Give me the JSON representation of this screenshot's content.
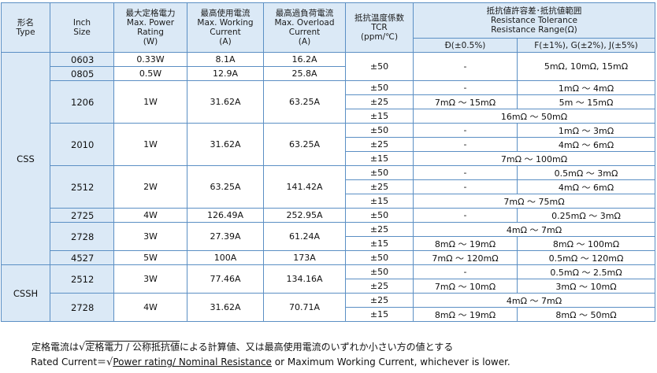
{
  "header": {
    "type": [
      "形名",
      "Type"
    ],
    "size": [
      "Inch",
      "Size"
    ],
    "power": [
      "最大定格電力",
      "Max. Power",
      "Rating",
      "(W)"
    ],
    "working": [
      "最高使用電流",
      "Max. Working",
      "Current",
      "(A)"
    ],
    "overload": [
      "最高過負荷電流",
      "Max. Overload",
      "Current",
      "(A)"
    ],
    "tcr": [
      "抵抗温度係数",
      "TCR",
      "(ppm/℃)"
    ],
    "tolerance": [
      "抵抗値許容差･抵抗値範囲",
      "Resistance Tolerance",
      "Resistance Range(Ω)"
    ],
    "tol_d": "Đ(±0.5%)",
    "tol_fgj": "F(±1%), G(±2%), J(±5%)"
  },
  "rows": [
    {
      "type": "CSS",
      "size": "0603",
      "power": "0.33W",
      "working": "8.1A",
      "overload": "16.2A",
      "tcr": "±50",
      "d": "-",
      "fgj": "5mΩ, 10mΩ, 15mΩ"
    },
    {
      "size": "0805",
      "power": "0.5W",
      "working": "12.9A",
      "overload": "25.8A"
    },
    {
      "size": "1206",
      "power": "1W",
      "working": "31.62A",
      "overload": "63.25A",
      "tcr": "±50",
      "d": "-",
      "fgj": "1mΩ ～ 4mΩ"
    },
    {
      "tcr": "±25",
      "d": "7mΩ ～ 15mΩ",
      "fgj": "5m ～ 15mΩ"
    },
    {
      "tcr": "±15",
      "span": "16mΩ ～ 50mΩ"
    },
    {
      "size": "2010",
      "power": "1W",
      "working": "31.62A",
      "overload": "63.25A",
      "tcr": "±50",
      "d": "-",
      "fgj": "1mΩ ～ 3mΩ"
    },
    {
      "tcr": "±25",
      "d": "-",
      "fgj": "4mΩ ～ 6mΩ"
    },
    {
      "tcr": "±15",
      "span": "7mΩ ～ 100mΩ"
    },
    {
      "size": "2512",
      "power": "2W",
      "working": "63.25A",
      "overload": "141.42A",
      "tcr": "±50",
      "d": "-",
      "fgj": "0.5mΩ ～ 3mΩ"
    },
    {
      "tcr": "±25",
      "d": "-",
      "fgj": "4mΩ ～ 6mΩ"
    },
    {
      "tcr": "±15",
      "span": "7mΩ ～ 75mΩ"
    },
    {
      "size": "2725",
      "power": "4W",
      "working": "126.49A",
      "overload": "252.95A",
      "tcr": "±50",
      "d": "-",
      "fgj": "0.25mΩ ～ 3mΩ"
    },
    {
      "size": "2728",
      "power": "3W",
      "working": "27.39A",
      "overload": "61.24A",
      "tcr": "±25",
      "span": "4mΩ ～ 7mΩ"
    },
    {
      "tcr": "±15",
      "d": "8mΩ ～ 19mΩ",
      "fgj": "8mΩ ～ 100mΩ"
    },
    {
      "size": "4527",
      "power": "5W",
      "working": "100A",
      "overload": "173A",
      "tcr": "±50",
      "d": "7mΩ ～ 120mΩ",
      "fgj": "0.5mΩ ～ 120mΩ"
    },
    {
      "type": "CSSH",
      "size": "2512",
      "power": "3W",
      "working": "77.46A",
      "overload": "134.16A",
      "tcr": "±50",
      "d": "-",
      "fgj": "0.5mΩ ～ 2.5mΩ"
    },
    {
      "tcr": "±25",
      "d": "7mΩ ～ 10mΩ",
      "fgj": "3mΩ ～ 10mΩ"
    },
    {
      "size": "2728",
      "power": "4W",
      "working": "31.62A",
      "overload": "70.71A",
      "tcr": "±25",
      "span": "4mΩ ～ 7mΩ"
    },
    {
      "tcr": "±15",
      "d": "8mΩ ～ 19mΩ",
      "fgj": "8mΩ ～ 50mΩ"
    }
  ],
  "notes": {
    "jp_prefix": "定格電流は",
    "jp_root": "√",
    "jp_formula": "定格電力 / 公称抵抗値",
    "jp_suffix": "による計算値、又は最高使用電流のいずれか小さい方の値とする",
    "en_prefix": "Rated Current＝",
    "en_root": "√",
    "en_formula": "Power rating/ Nominal Resistance",
    "en_suffix": " or Maximum Working Current, whichever is lower."
  }
}
